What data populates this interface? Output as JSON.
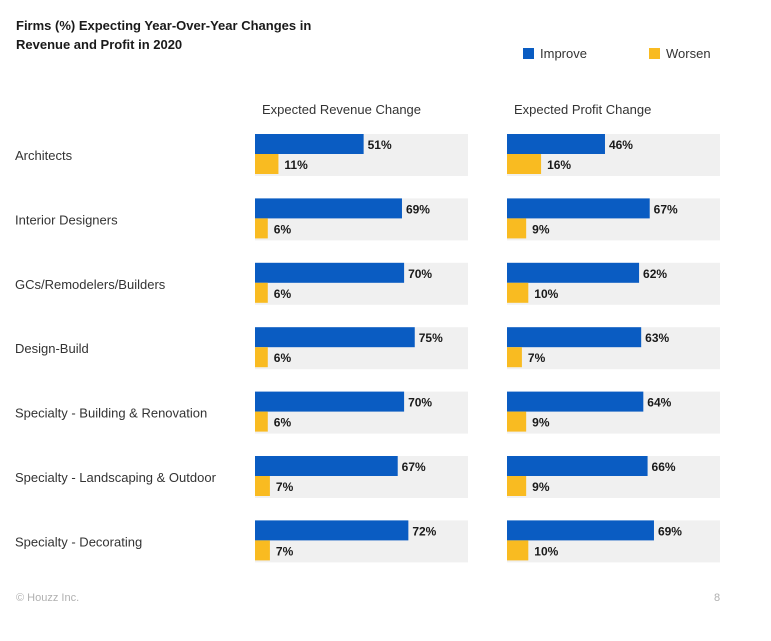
{
  "chart_data": {
    "type": "bar",
    "title": "Firms (%) Expecting Year-Over-Year Changes in Revenue and Profit in 2020",
    "legend_position": "top-right",
    "legend": [
      {
        "name": "Improve",
        "color": "#0a5cc2"
      },
      {
        "name": "Worsen",
        "color": "#f9bb21"
      }
    ],
    "categories": [
      "Architects",
      "Interior Designers",
      "GCs/Remodelers/Builders",
      "Design-Build",
      "Specialty - Building & Renovation",
      "Specialty - Landscaping & Outdoor",
      "Specialty - Decorating"
    ],
    "panels": [
      {
        "title": "Expected Revenue Change",
        "series": [
          {
            "name": "Improve",
            "values": [
              51,
              69,
              70,
              75,
              70,
              67,
              72
            ]
          },
          {
            "name": "Worsen",
            "values": [
              11,
              6,
              6,
              6,
              6,
              7,
              7
            ]
          }
        ]
      },
      {
        "title": "Expected Profit Change",
        "series": [
          {
            "name": "Improve",
            "values": [
              46,
              67,
              62,
              63,
              64,
              66,
              69
            ]
          },
          {
            "name": "Worsen",
            "values": [
              16,
              9,
              10,
              7,
              9,
              9,
              10
            ]
          }
        ]
      }
    ],
    "value_suffix": "%",
    "xlim": [
      0,
      100
    ],
    "background_track_color": "#f0f0f0"
  },
  "footer": {
    "copyright": "© Houzz Inc.",
    "page_number": "8"
  }
}
